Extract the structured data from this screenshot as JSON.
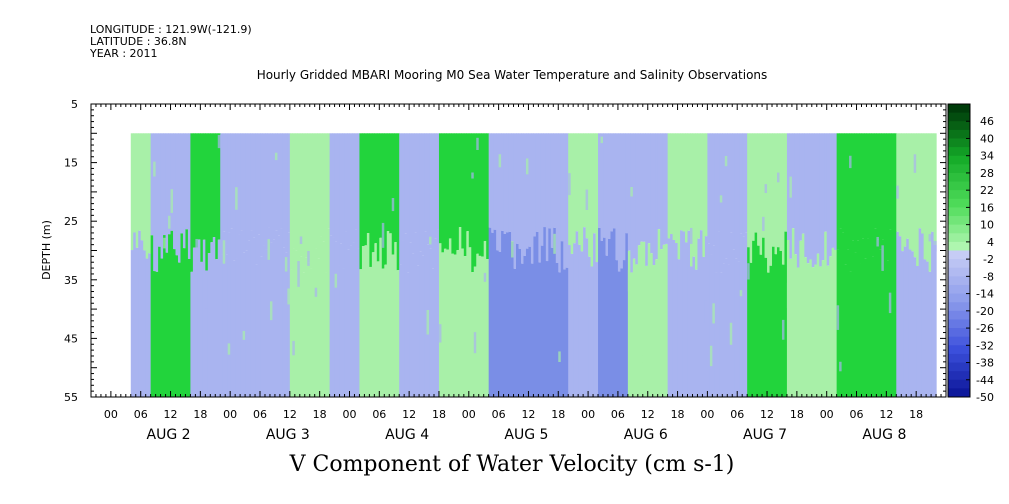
{
  "metadata": {
    "longitude": "LONGITUDE : 121.9W(-121.9)",
    "latitude": "LATITUDE : 36.8N",
    "year": "YEAR : 2011"
  },
  "chart_data": {
    "type": "heatmap",
    "title": "Hourly Gridded MBARI Mooring M0 Sea Water Temperature and Salinity Observations",
    "xlabel": "V Component of Water Velocity (cm s-1)",
    "ylabel": "DEPTH (m)",
    "ylim": [
      5,
      55
    ],
    "y_inverted": true,
    "y_ticks": [
      5,
      15,
      25,
      35,
      45,
      55
    ],
    "x_hour_ticks": [
      "00",
      "06",
      "12",
      "18",
      "00",
      "06",
      "12",
      "18",
      "00",
      "06",
      "12",
      "18",
      "00",
      "06",
      "12",
      "18",
      "00",
      "06",
      "12",
      "18",
      "00",
      "06",
      "12",
      "18",
      "00",
      "06",
      "12",
      "18"
    ],
    "x_day_labels": [
      "AUG  2",
      "AUG  3",
      "AUG  4",
      "AUG  5",
      "AUG  6",
      "AUG  7",
      "AUG  8"
    ],
    "data_start_hour": 4,
    "data_end_hour": 166,
    "data_depth_range": [
      10,
      55
    ],
    "colorbar": {
      "labels": [
        "46",
        "40",
        "34",
        "28",
        "22",
        "16",
        "10",
        "4",
        "-2",
        "-8",
        "-14",
        "-20",
        "-26",
        "-32",
        "-38",
        "-44",
        "-50"
      ],
      "min": -50,
      "max": 52,
      "step": 3
    },
    "colors": {
      "strong_green": "#22d43c",
      "light_green": "#a8f0a8",
      "light_blue": "#a9b4f0",
      "strong_blue": "#7a8ee6"
    },
    "velocity_regimes": [
      {
        "hour_start": 4,
        "hour_end": 8,
        "upper": "light_green",
        "lower": "light_blue"
      },
      {
        "hour_start": 8,
        "hour_end": 16,
        "upper": "light_blue",
        "lower": "strong_green"
      },
      {
        "hour_start": 16,
        "hour_end": 22,
        "upper": "strong_green",
        "lower": "light_blue"
      },
      {
        "hour_start": 22,
        "hour_end": 36,
        "upper": "light_blue",
        "lower": "light_blue"
      },
      {
        "hour_start": 36,
        "hour_end": 44,
        "upper": "light_green",
        "lower": "light_green"
      },
      {
        "hour_start": 44,
        "hour_end": 50,
        "upper": "light_blue",
        "lower": "light_blue"
      },
      {
        "hour_start": 50,
        "hour_end": 58,
        "upper": "strong_green",
        "lower": "light_green"
      },
      {
        "hour_start": 58,
        "hour_end": 66,
        "upper": "light_blue",
        "lower": "light_blue"
      },
      {
        "hour_start": 66,
        "hour_end": 76,
        "upper": "strong_green",
        "lower": "light_green"
      },
      {
        "hour_start": 76,
        "hour_end": 92,
        "upper": "light_blue",
        "lower": "strong_blue"
      },
      {
        "hour_start": 92,
        "hour_end": 98,
        "upper": "light_green",
        "lower": "light_blue"
      },
      {
        "hour_start": 98,
        "hour_end": 104,
        "upper": "light_blue",
        "lower": "strong_blue"
      },
      {
        "hour_start": 104,
        "hour_end": 112,
        "upper": "light_blue",
        "lower": "light_green"
      },
      {
        "hour_start": 112,
        "hour_end": 120,
        "upper": "light_green",
        "lower": "light_blue"
      },
      {
        "hour_start": 120,
        "hour_end": 128,
        "upper": "light_blue",
        "lower": "light_blue"
      },
      {
        "hour_start": 128,
        "hour_end": 136,
        "upper": "light_green",
        "lower": "strong_green"
      },
      {
        "hour_start": 136,
        "hour_end": 146,
        "upper": "light_blue",
        "lower": "light_green"
      },
      {
        "hour_start": 146,
        "hour_end": 158,
        "upper": "strong_green",
        "lower": "strong_green"
      },
      {
        "hour_start": 158,
        "hour_end": 166,
        "upper": "light_green",
        "lower": "light_blue"
      }
    ]
  }
}
